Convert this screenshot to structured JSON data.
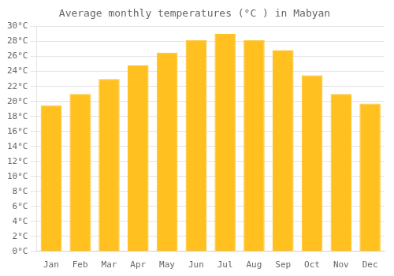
{
  "chart_data": {
    "type": "bar",
    "title": "Average monthly temperatures (°C ) in Mabyan",
    "categories": [
      "Jan",
      "Feb",
      "Mar",
      "Apr",
      "May",
      "Jun",
      "Jul",
      "Aug",
      "Sep",
      "Oct",
      "Nov",
      "Dec"
    ],
    "values": [
      19.5,
      21.0,
      23.0,
      24.8,
      26.5,
      28.2,
      29.0,
      28.2,
      26.8,
      23.5,
      21.0,
      19.7
    ],
    "color": "#FFC020",
    "ylim": [
      0,
      30
    ],
    "yticks": [
      {
        "value": 0,
        "label": "0°C"
      },
      {
        "value": 2,
        "label": "2°C"
      },
      {
        "value": 4,
        "label": "4°C"
      },
      {
        "value": 6,
        "label": "6°C"
      },
      {
        "value": 8,
        "label": "8°C"
      },
      {
        "value": 10,
        "label": "10°C"
      },
      {
        "value": 12,
        "label": "12°C"
      },
      {
        "value": 14,
        "label": "14°C"
      },
      {
        "value": 16,
        "label": "16°C"
      },
      {
        "value": 18,
        "label": "18°C"
      },
      {
        "value": 20,
        "label": "20°C"
      },
      {
        "value": 22,
        "label": "22°C"
      },
      {
        "value": 24,
        "label": "24°C"
      },
      {
        "value": 26,
        "label": "26°C"
      },
      {
        "value": 28,
        "label": "28°C"
      },
      {
        "value": 30,
        "label": "30°C"
      }
    ],
    "grid": true
  }
}
